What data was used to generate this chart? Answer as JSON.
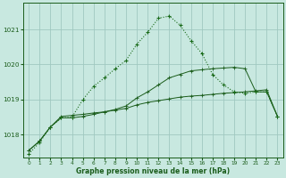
{
  "background_color": "#c8e8e0",
  "grid_color": "#a0c8c0",
  "line_color_dark": "#1a5c1a",
  "line_color_mid": "#1a6b1a",
  "xlabel": "Graphe pression niveau de la mer (hPa)",
  "xlim": [
    -0.5,
    23.5
  ],
  "ylim": [
    1017.35,
    1021.75
  ],
  "yticks": [
    1018,
    1019,
    1020,
    1021
  ],
  "xticks": [
    0,
    1,
    2,
    3,
    4,
    5,
    6,
    7,
    8,
    9,
    10,
    11,
    12,
    13,
    14,
    15,
    16,
    17,
    18,
    19,
    20,
    21,
    22,
    23
  ],
  "series_main_x": [
    0,
    1,
    2,
    3,
    4,
    5,
    6,
    7,
    8,
    9,
    10,
    11,
    12,
    13,
    14,
    15,
    16,
    17,
    18,
    19,
    20,
    21,
    22,
    23
  ],
  "series_main_y": [
    1017.45,
    1017.78,
    1018.22,
    1018.48,
    1018.5,
    1019.0,
    1019.38,
    1019.62,
    1019.88,
    1020.12,
    1020.58,
    1020.92,
    1021.32,
    1021.38,
    1021.12,
    1020.68,
    1020.32,
    1019.72,
    1019.42,
    1019.22,
    1019.18,
    1019.22,
    1019.22,
    1018.52
  ],
  "series_mid_x": [
    0,
    1,
    2,
    3,
    4,
    5,
    6,
    7,
    8,
    9,
    10,
    11,
    12,
    13,
    14,
    15,
    16,
    17,
    18,
    19,
    20,
    21,
    22,
    23
  ],
  "series_mid_y": [
    1017.55,
    1017.82,
    1018.22,
    1018.48,
    1018.48,
    1018.52,
    1018.58,
    1018.65,
    1018.72,
    1018.82,
    1019.05,
    1019.22,
    1019.42,
    1019.62,
    1019.72,
    1019.82,
    1019.85,
    1019.88,
    1019.9,
    1019.92,
    1019.88,
    1019.22,
    1019.22,
    1018.52
  ],
  "series_flat_x": [
    0,
    1,
    2,
    3,
    4,
    5,
    6,
    7,
    8,
    9,
    10,
    11,
    12,
    13,
    14,
    15,
    16,
    17,
    18,
    19,
    20,
    21,
    22,
    23
  ],
  "series_flat_y": [
    1017.55,
    1017.82,
    1018.22,
    1018.52,
    1018.55,
    1018.58,
    1018.62,
    1018.65,
    1018.7,
    1018.75,
    1018.85,
    1018.92,
    1018.97,
    1019.02,
    1019.07,
    1019.1,
    1019.12,
    1019.15,
    1019.18,
    1019.2,
    1019.22,
    1019.25,
    1019.28,
    1018.52
  ]
}
